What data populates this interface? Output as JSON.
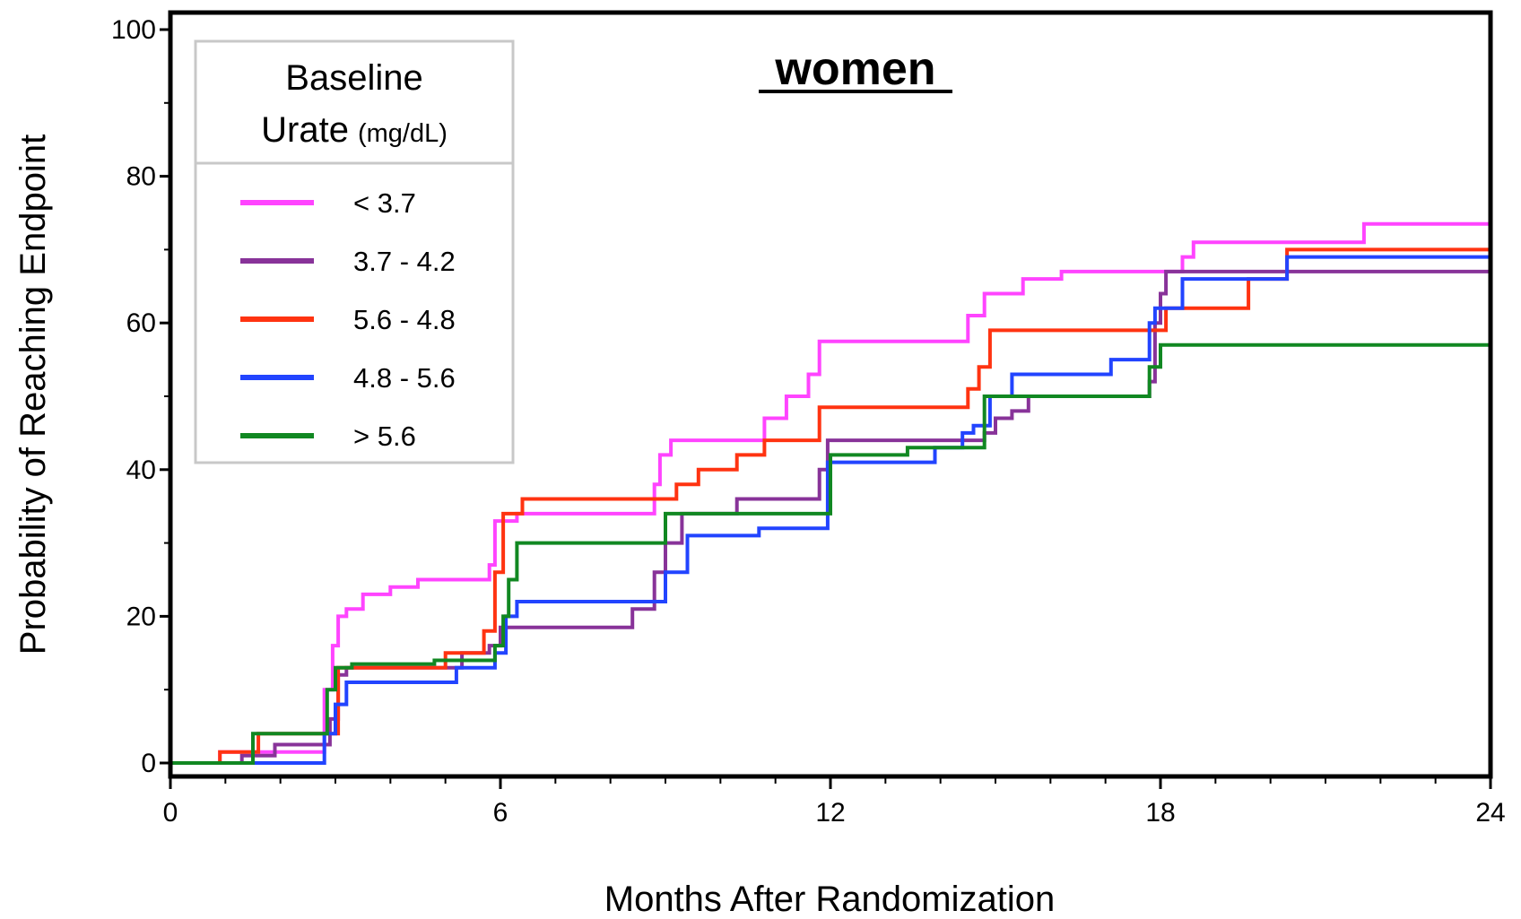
{
  "chart_data": {
    "type": "line",
    "step": true,
    "title": "women",
    "xlabel": "Months After Randomization",
    "ylabel": "Probability of Reaching Endpoint",
    "xlim": [
      0,
      24
    ],
    "ylim": [
      0,
      100
    ],
    "x_ticks": [
      0,
      6,
      12,
      18,
      24
    ],
    "y_ticks": [
      0,
      20,
      40,
      60,
      80,
      100
    ],
    "grid": false,
    "legend": {
      "title": "Baseline",
      "title_line2": "Urate",
      "title_unit": "(mg/dL)",
      "placement": "top-left"
    },
    "series": [
      {
        "name": "< 3.7",
        "color": "#ff44ff",
        "x": [
          0,
          0.9,
          2.8,
          2.95,
          3.05,
          3.2,
          3.5,
          4.0,
          4.5,
          5.5,
          5.8,
          5.9,
          6.0,
          6.3,
          7.3,
          8.8,
          8.9,
          9.1,
          10.5,
          10.8,
          11.2,
          11.6,
          11.8,
          14.3,
          14.5,
          14.8,
          15.5,
          16.2,
          18.1,
          18.4,
          18.6,
          20.3,
          21.7,
          24.0
        ],
        "y": [
          0,
          1.5,
          10,
          16,
          20,
          21,
          23,
          24,
          25,
          25,
          27,
          33,
          33,
          34,
          34,
          38,
          42,
          44,
          44,
          47,
          50,
          53,
          57.5,
          57.5,
          61,
          64,
          66,
          67,
          67,
          69,
          71,
          71,
          73.5,
          73.5
        ]
      },
      {
        "name": "3.7 - 4.2",
        "color": "#883399",
        "x": [
          0,
          1.3,
          1.9,
          2.9,
          3.05,
          3.2,
          4.5,
          5.3,
          5.8,
          6.0,
          7.5,
          8.4,
          8.8,
          9.0,
          9.3,
          9.6,
          10.3,
          11.6,
          11.8,
          11.95,
          13.4,
          14.5,
          14.8,
          15.0,
          15.3,
          15.6,
          17.5,
          17.8,
          17.9,
          18.0,
          18.1,
          24.0
        ],
        "y": [
          0,
          1,
          2.5,
          6,
          12,
          13,
          13,
          15,
          16,
          18.5,
          18.5,
          21,
          26,
          30,
          34,
          34,
          36,
          36,
          40,
          44,
          44,
          44,
          45,
          47,
          48,
          50,
          50,
          52,
          60,
          64,
          67,
          67
        ]
      },
      {
        "name": "5.6 - 4.8",
        "color": "#ff3311",
        "x": [
          0,
          0.9,
          1.5,
          1.6,
          2.9,
          3.05,
          4.5,
          5.0,
          5.7,
          5.9,
          6.05,
          6.4,
          8.9,
          9.2,
          9.6,
          10.3,
          10.8,
          11.8,
          14.3,
          14.5,
          14.7,
          14.9,
          17.4,
          17.8,
          17.9,
          18.1,
          19.6,
          20.3,
          24.0
        ],
        "y": [
          0,
          1.5,
          1.5,
          4,
          4,
          13,
          13,
          15,
          18,
          26,
          34,
          36,
          36,
          38,
          40,
          42,
          44,
          48.5,
          48.5,
          51,
          54,
          59,
          59,
          59,
          59,
          62,
          66,
          70,
          70
        ]
      },
      {
        "name": "4.8 - 5.6",
        "color": "#2244ff",
        "x": [
          0,
          0.9,
          2.8,
          3.0,
          3.2,
          4.6,
          5.2,
          5.9,
          6.1,
          6.3,
          8.3,
          8.9,
          9.0,
          9.4,
          10.7,
          11.95,
          13.6,
          13.9,
          14.4,
          14.6,
          14.9,
          15.3,
          16.3,
          17.1,
          17.6,
          17.8,
          17.9,
          18.1,
          18.4,
          20.3,
          24.0
        ],
        "y": [
          0,
          0,
          4,
          8,
          11,
          11,
          13,
          15,
          20,
          22,
          22,
          22,
          26,
          31,
          32,
          41,
          41,
          43,
          45,
          46,
          50,
          53,
          53,
          55,
          55,
          60,
          62,
          62,
          66,
          69,
          69
        ]
      },
      {
        "name": "> 5.6",
        "color": "#118822",
        "x": [
          0,
          1.5,
          2.85,
          3.0,
          3.3,
          4.8,
          5.9,
          6.05,
          6.15,
          6.3,
          8.8,
          9.0,
          10.7,
          12.0,
          13.4,
          14.6,
          14.8,
          16.0,
          17.8,
          18.0,
          24.0
        ],
        "y": [
          0,
          4,
          10,
          13,
          13.5,
          14,
          16,
          20,
          25,
          30,
          30,
          34,
          34,
          42,
          43,
          43,
          50,
          50,
          54,
          57,
          57
        ]
      }
    ]
  }
}
